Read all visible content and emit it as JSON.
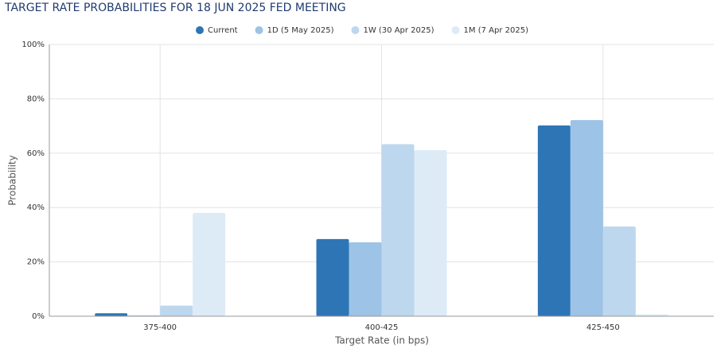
{
  "chart_data": {
    "type": "bar",
    "title": "TARGET RATE PROBABILITIES FOR 18 JUN 2025 FED MEETING",
    "xlabel": "Target Rate (in bps)",
    "ylabel": "Probability",
    "categories": [
      "375-400",
      "400-425",
      "425-450"
    ],
    "series": [
      {
        "name": "Current",
        "color": "#2e75b6",
        "values": [
          1.1,
          28.4,
          70.2
        ]
      },
      {
        "name": "1D (5 May 2025)",
        "color": "#9dc3e6",
        "values": [
          0.3,
          27.2,
          72.2
        ]
      },
      {
        "name": "1W (30 Apr 2025)",
        "color": "#bdd7ee",
        "values": [
          3.9,
          63.3,
          33.0
        ]
      },
      {
        "name": "1M (7 Apr 2025)",
        "color": "#ddebf7",
        "values": [
          38.0,
          61.1,
          0.7
        ]
      }
    ],
    "ylim": [
      0,
      100
    ],
    "yticks": [
      {
        "value": 0,
        "label": "0%"
      },
      {
        "value": 20,
        "label": "20%"
      },
      {
        "value": 40,
        "label": "40%"
      },
      {
        "value": 60,
        "label": "60%"
      },
      {
        "value": 80,
        "label": "80%"
      },
      {
        "value": 100,
        "label": "100%"
      }
    ],
    "grid": true
  }
}
